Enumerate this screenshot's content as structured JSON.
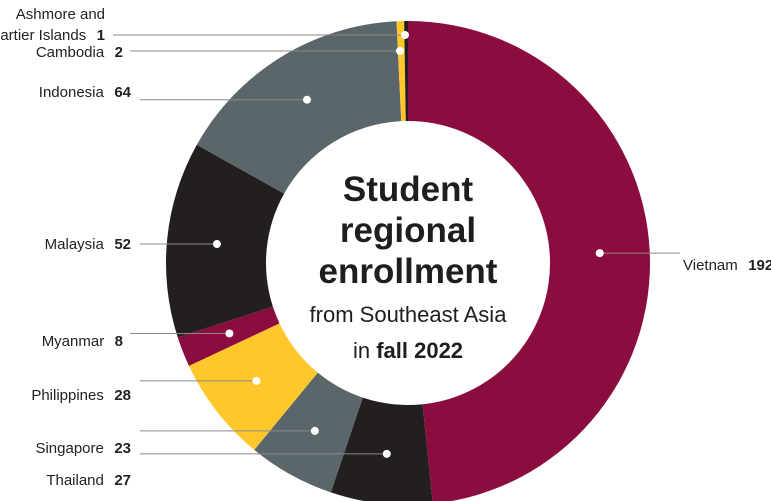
{
  "chart_data": {
    "type": "pie",
    "variant": "donut",
    "title": {
      "line1": "Student",
      "line2": "regional",
      "line3": "enrollment",
      "line4": "from Southeast Asia",
      "line5_prefix": "in ",
      "line5_bold": "fall 2022"
    },
    "slices": [
      {
        "name": "Vietnam",
        "value": 192,
        "color": "#8b0c3f"
      },
      {
        "name": "Thailand",
        "value": 27,
        "color": "#231f20"
      },
      {
        "name": "Singapore",
        "value": 23,
        "color": "#5b666b"
      },
      {
        "name": "Philippines",
        "value": 28,
        "color": "#ffc72c"
      },
      {
        "name": "Myanmar",
        "value": 8,
        "color": "#8b0c3f"
      },
      {
        "name": "Malaysia",
        "value": 52,
        "color": "#231f20"
      },
      {
        "name": "Indonesia",
        "value": 64,
        "color": "#5b666b"
      },
      {
        "name": "Cambodia",
        "value": 2,
        "color": "#ffc72c"
      },
      {
        "name": "Ashmore and Cartier Islands",
        "value": 1,
        "color": "#231f20"
      }
    ],
    "labels": {
      "vietnam": {
        "name": "Vietnam",
        "value": "192"
      },
      "thailand": {
        "name": "Thailand",
        "value": "27"
      },
      "singapore": {
        "name": "Singapore",
        "value": "23"
      },
      "philippines": {
        "name": "Philippines",
        "value": "28"
      },
      "myanmar": {
        "name": "Myanmar",
        "value": "8"
      },
      "malaysia": {
        "name": "Malaysia",
        "value": "52"
      },
      "indonesia": {
        "name": "Indonesia",
        "value": "64"
      },
      "cambodia": {
        "name": "Cambodia",
        "value": "2"
      },
      "ashmore": {
        "name_line1": "Ashmore and",
        "name_line2": "Cartier Islands",
        "value": "1"
      }
    }
  }
}
